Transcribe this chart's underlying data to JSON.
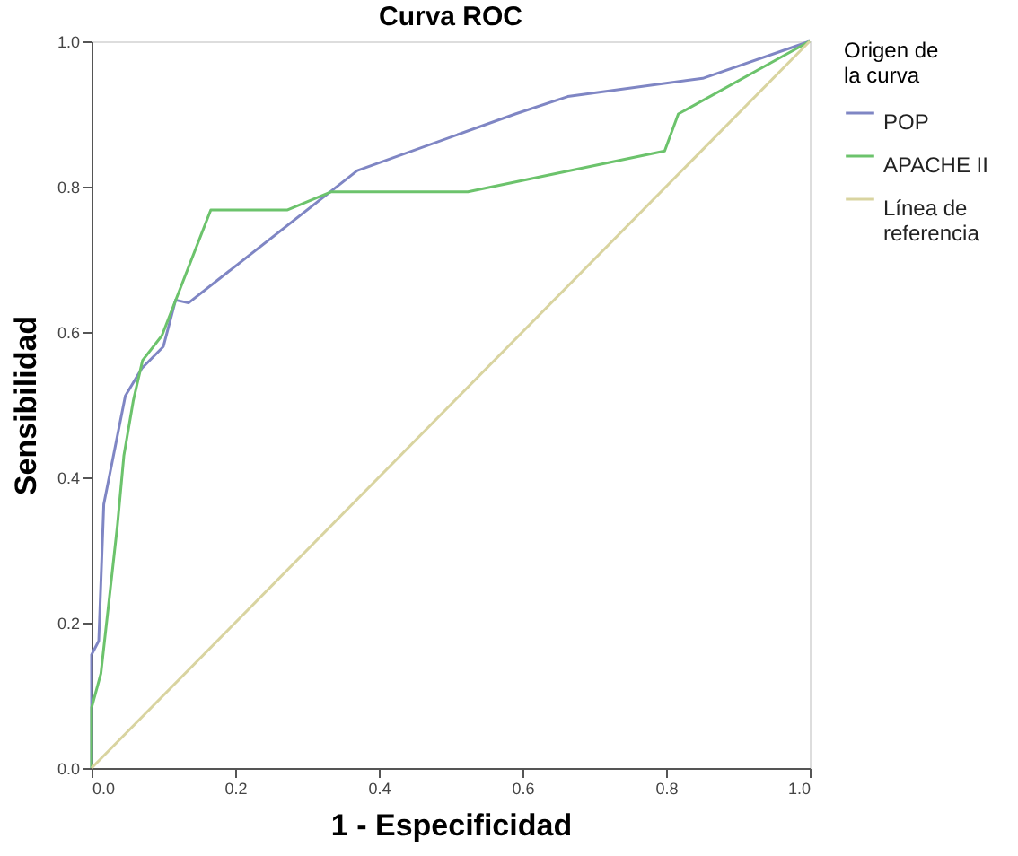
{
  "chart_data": {
    "type": "line",
    "title": "Curva ROC",
    "xlabel": "1 - Especificidad",
    "ylabel": "Sensibilidad",
    "legend_title": "Origen de la curva",
    "legend": "right",
    "grid": false,
    "marker": "none",
    "line_style": "solid",
    "xlim": [
      0,
      1
    ],
    "ylim": [
      0,
      1
    ],
    "xticks": [
      {
        "value": 0,
        "label": "0.0"
      },
      0.2,
      0.4,
      0.6,
      0.8,
      {
        "value": 1,
        "label": "1.0"
      }
    ],
    "yticks": [
      {
        "value": 0,
        "label": "0.0"
      },
      0.2,
      0.4,
      0.6,
      0.8,
      {
        "value": 1,
        "label": "1.0"
      }
    ],
    "series": [
      {
        "name": "POP",
        "color": "#7f86c4",
        "x": [
          0,
          0,
          0.01,
          0.017,
          0.047,
          0.07,
          0.1,
          0.117,
          0.135,
          0.37,
          0.59,
          0.663,
          0.851,
          1
        ],
        "values": [
          0,
          0.156,
          0.175,
          0.363,
          0.512,
          0.55,
          0.58,
          0.644,
          0.64,
          0.822,
          0.9,
          0.924,
          0.949,
          1
        ]
      },
      {
        "name": "APACHE II",
        "color": "#6cc36c",
        "x": [
          0,
          0,
          0.013,
          0.036,
          0.045,
          0.058,
          0.071,
          0.098,
          0.166,
          0.273,
          0.334,
          0.524,
          0.798,
          0.817,
          1
        ],
        "values": [
          0,
          0.083,
          0.13,
          0.334,
          0.43,
          0.505,
          0.561,
          0.595,
          0.768,
          0.768,
          0.793,
          0.793,
          0.849,
          0.9,
          1
        ]
      },
      {
        "name": "Línea de referencia",
        "color": "#d9d4a0",
        "x": [
          0,
          1
        ],
        "values": [
          0,
          1
        ]
      }
    ]
  }
}
